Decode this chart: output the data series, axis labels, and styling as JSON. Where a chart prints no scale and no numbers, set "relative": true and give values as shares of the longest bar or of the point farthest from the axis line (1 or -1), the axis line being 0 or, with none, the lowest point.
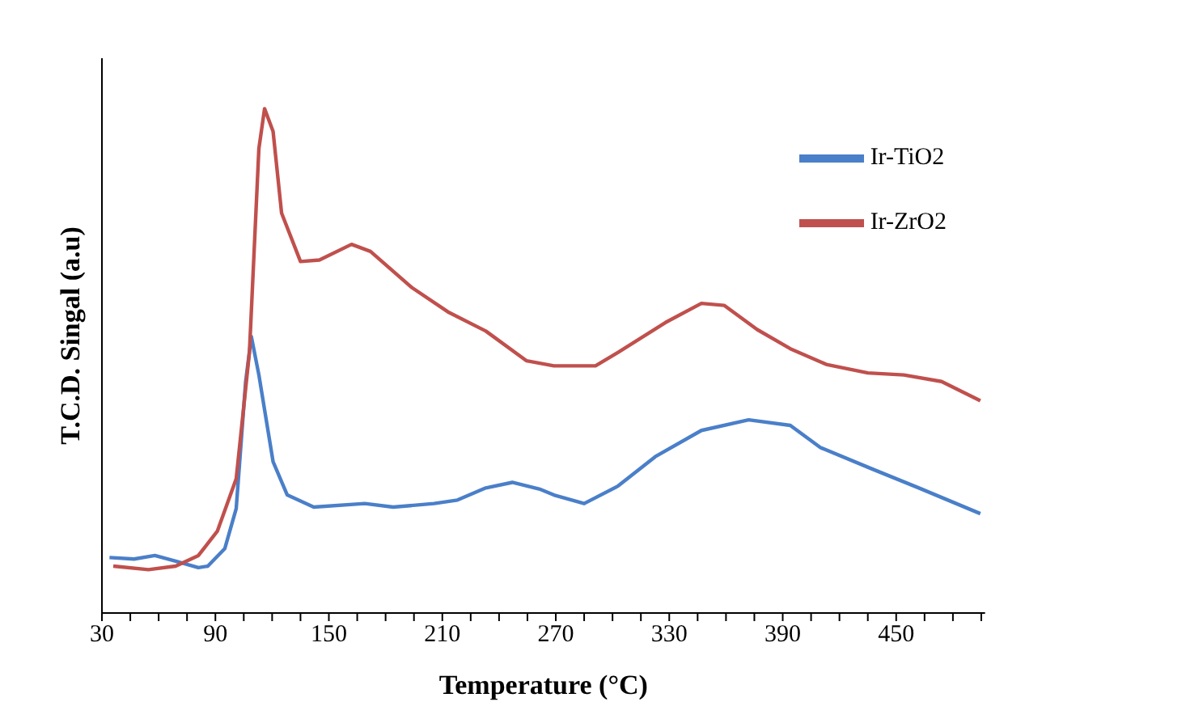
{
  "chart_data": {
    "type": "line",
    "xlabel": "Temperature (°C)",
    "ylabel": "T.C.D. Singal (a.u)",
    "relative": true,
    "xlim": [
      30,
      497
    ],
    "xticks": [
      30,
      {
        "value": 45,
        "label": null
      },
      {
        "value": 60,
        "label": null
      },
      {
        "value": 75,
        "label": null
      },
      90,
      {
        "value": 105,
        "label": null
      },
      {
        "value": 120,
        "label": null
      },
      {
        "value": 135,
        "label": null
      },
      150,
      {
        "value": 165,
        "label": null
      },
      {
        "value": 180,
        "label": null
      },
      {
        "value": 195,
        "label": null
      },
      210,
      {
        "value": 225,
        "label": null
      },
      {
        "value": 240,
        "label": null
      },
      {
        "value": 255,
        "label": null
      },
      270,
      {
        "value": 285,
        "label": null
      },
      {
        "value": 300,
        "label": null
      },
      {
        "value": 315,
        "label": null
      },
      330,
      {
        "value": 345,
        "label": null
      },
      {
        "value": 360,
        "label": null
      },
      {
        "value": 375,
        "label": null
      },
      390,
      {
        "value": 405,
        "label": null
      },
      {
        "value": 420,
        "label": null
      },
      {
        "value": 435,
        "label": null
      },
      450,
      {
        "value": 465,
        "label": null
      },
      {
        "value": 480,
        "label": null
      },
      {
        "value": 495,
        "label": null
      }
    ],
    "legend": "top right",
    "marker": "none",
    "line_style": "solid",
    "series": [
      {
        "name": "Ir-TiO2",
        "color": "#4a7fc9",
        "x": [
          34,
          47,
          58,
          69,
          81,
          86,
          95,
          101,
          106,
          109,
          113,
          120.5,
          128,
          142,
          169,
          184,
          205.6,
          218,
          233,
          247,
          262,
          269,
          285,
          303,
          322.6,
          347,
          372,
          394,
          410,
          437,
          462,
          494.5
        ],
        "values": [
          0.11,
          0.107,
          0.114,
          0.103,
          0.09,
          0.093,
          0.128,
          0.207,
          0.459,
          0.548,
          0.472,
          0.3,
          0.234,
          0.21,
          0.217,
          0.21,
          0.217,
          0.224,
          0.248,
          0.259,
          0.245,
          0.234,
          0.217,
          0.252,
          0.31,
          0.362,
          0.383,
          0.372,
          0.328,
          0.286,
          0.248,
          0.197
        ]
      },
      {
        "name": "Ir-ZrO2",
        "color": "#c0504d",
        "x": [
          36,
          54.6,
          69,
          81,
          91,
          101,
          108,
          113,
          116,
          120.5,
          125,
          135,
          145,
          162,
          172,
          194,
          213,
          233,
          254.6,
          269,
          291,
          303,
          328,
          347,
          359,
          376.5,
          394,
          413,
          435,
          454,
          474,
          494.5
        ],
        "values": [
          0.093,
          0.086,
          0.093,
          0.114,
          0.162,
          0.266,
          0.517,
          0.921,
          1.0,
          0.955,
          0.793,
          0.697,
          0.7,
          0.731,
          0.717,
          0.645,
          0.597,
          0.559,
          0.5,
          0.49,
          0.49,
          0.517,
          0.576,
          0.614,
          0.61,
          0.562,
          0.524,
          0.493,
          0.476,
          0.472,
          0.459,
          0.421
        ]
      }
    ]
  }
}
